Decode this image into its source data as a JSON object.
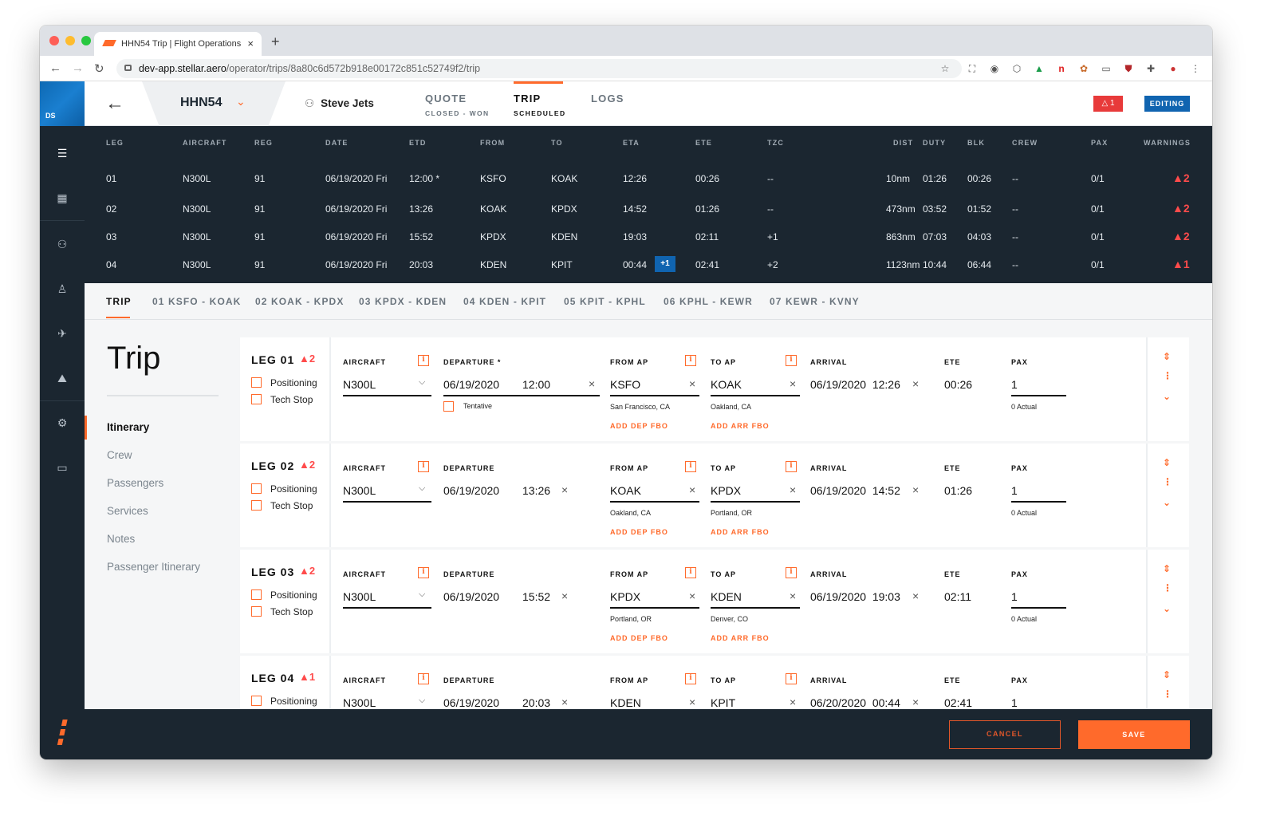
{
  "browser": {
    "tab_title": "HHN54 Trip | Flight Operations",
    "url_host": "dev-app.stellar.aero",
    "url_path": "/operator/trips/8a80c6d572b918e00172c851c52749f2/trip"
  },
  "rail": {
    "logo": "DS",
    "icons": [
      "sliders-icon",
      "calendar-icon",
      "people-icon",
      "graduation-icon",
      "plane-icon",
      "map-icon",
      "gear-icon",
      "chat-icon"
    ]
  },
  "header": {
    "trip_id": "HHN54",
    "client": "Steve Jets",
    "warning_count": "1",
    "editing": "EDITING",
    "tabs": [
      {
        "label": "QUOTE",
        "sub": "CLOSED - WON"
      },
      {
        "label": "TRIP",
        "sub": "SCHEDULED"
      },
      {
        "label": "LOGS",
        "sub": ""
      }
    ]
  },
  "summary": {
    "headers": {
      "leg": "LEG",
      "aircraft": "AIRCRAFT",
      "reg": "REG",
      "date": "DATE",
      "etd": "ETD",
      "from": "FROM",
      "to": "TO",
      "eta": "ETA",
      "ete": "ETE",
      "tzc": "TZC",
      "dist": "DIST",
      "duty": "DUTY",
      "blk": "BLK",
      "crew": "CREW",
      "pax": "PAX",
      "warnings": "WARNINGS"
    },
    "rows": [
      {
        "leg": "01",
        "aircraft": "N300L",
        "reg": "91",
        "date": "06/19/2020 Fri",
        "etd": "12:00 *",
        "from": "KSFO",
        "to": "KOAK",
        "eta": "12:26",
        "eta_badge": "",
        "ete": "00:26",
        "tzc": "--",
        "dist": "10nm",
        "duty": "01:26",
        "blk": "00:26",
        "crew": "--",
        "pax": "0/1",
        "warnings": "▲2"
      },
      {
        "leg": "02",
        "aircraft": "N300L",
        "reg": "91",
        "date": "06/19/2020 Fri",
        "etd": "13:26",
        "from": "KOAK",
        "to": "KPDX",
        "eta": "14:52",
        "eta_badge": "",
        "ete": "01:26",
        "tzc": "--",
        "dist": "473nm",
        "duty": "03:52",
        "blk": "01:52",
        "crew": "--",
        "pax": "0/1",
        "warnings": "▲2"
      },
      {
        "leg": "03",
        "aircraft": "N300L",
        "reg": "91",
        "date": "06/19/2020 Fri",
        "etd": "15:52",
        "from": "KPDX",
        "to": "KDEN",
        "eta": "19:03",
        "eta_badge": "",
        "ete": "02:11",
        "tzc": "+1",
        "dist": "863nm",
        "duty": "07:03",
        "blk": "04:03",
        "crew": "--",
        "pax": "0/1",
        "warnings": "▲2"
      },
      {
        "leg": "04",
        "aircraft": "N300L",
        "reg": "91",
        "date": "06/19/2020 Fri",
        "etd": "20:03",
        "from": "KDEN",
        "to": "KPIT",
        "eta": "00:44",
        "eta_badge": "+1",
        "ete": "02:41",
        "tzc": "+2",
        "dist": "1123nm",
        "duty": "10:44",
        "blk": "06:44",
        "crew": "--",
        "pax": "0/1",
        "warnings": "▲1"
      }
    ]
  },
  "leg_tabs": [
    "TRIP",
    "01 KSFO - KOAK",
    "02 KOAK - KPDX",
    "03 KPDX - KDEN",
    "04 KDEN - KPIT",
    "05 KPIT - KPHL",
    "06 KPHL - KEWR",
    "07 KEWR - KVNY"
  ],
  "sidebar": {
    "title": "Trip",
    "items": [
      "Itinerary",
      "Crew",
      "Passengers",
      "Services",
      "Notes",
      "Passenger Itinerary"
    ]
  },
  "form_labels": {
    "aircraft": "AIRCRAFT",
    "departure": "DEPARTURE",
    "departure_req": "DEPARTURE *",
    "from": "FROM AP",
    "to": "TO AP",
    "arrival": "ARRIVAL",
    "ete": "ETE",
    "pax": "PAX",
    "positioning": "Positioning",
    "tech_stop": "Tech Stop",
    "tentative": "Tentative",
    "add_dep": "ADD DEP FBO",
    "add_arr": "ADD ARR FBO",
    "actual": "0 Actual"
  },
  "legs": [
    {
      "name": "LEG 01",
      "warn": "▲2",
      "aircraft": "N300L",
      "dep_date": "06/19/2020",
      "dep_time": "12:00",
      "from": "KSFO",
      "from_city": "San Francisco, CA",
      "to": "KOAK",
      "to_city": "Oakland, CA",
      "arrival": "06/19/2020  12:26",
      "ete": "00:26",
      "pax": "1"
    },
    {
      "name": "LEG 02",
      "warn": "▲2",
      "aircraft": "N300L",
      "dep_date": "06/19/2020",
      "dep_time": "13:26",
      "from": "KOAK",
      "from_city": "Oakland, CA",
      "to": "KPDX",
      "to_city": "Portland, OR",
      "arrival": "06/19/2020  14:52",
      "ete": "01:26",
      "pax": "1"
    },
    {
      "name": "LEG 03",
      "warn": "▲2",
      "aircraft": "N300L",
      "dep_date": "06/19/2020",
      "dep_time": "15:52",
      "from": "KPDX",
      "from_city": "Portland, OR",
      "to": "KDEN",
      "to_city": "Denver, CO",
      "arrival": "06/19/2020  19:03",
      "ete": "02:11",
      "pax": "1"
    },
    {
      "name": "LEG 04",
      "warn": "▲1",
      "aircraft": "N300L",
      "dep_date": "06/19/2020",
      "dep_time": "20:03",
      "from": "KDEN",
      "from_city": "",
      "to": "KPIT",
      "to_city": "",
      "arrival": "06/20/2020  00:44",
      "ete": "02:41",
      "pax": "1"
    }
  ],
  "footer": {
    "cancel": "CANCEL",
    "save": "SAVE"
  }
}
